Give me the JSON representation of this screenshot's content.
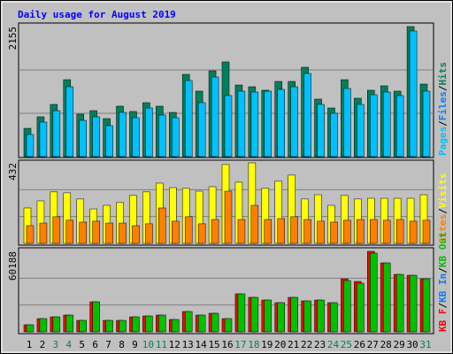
{
  "chart_data": [
    {
      "type": "bar",
      "title": "Daily usage for August 2019",
      "ylim": [
        0,
        2155
      ],
      "yticks": [
        2155
      ],
      "legend_separator": "/",
      "extra_legend": {
        "name": "Pages",
        "color": "#00c0ff"
      },
      "series": [
        {
          "name": "Hits",
          "color": "#00805c",
          "values": [
            469,
            660,
            865,
            1275,
            704,
            762,
            630,
            836,
            748,
            894,
            836,
            733,
            1363,
            1085,
            1422,
            1569,
            1187,
            1158,
            1100,
            1246,
            1246,
            1481,
            953,
            806,
            1275,
            968,
            1100,
            1173,
            1085,
            2155,
            1202
          ]
        },
        {
          "name": "Files",
          "color": "#0080ff",
          "bar_color": "#00c0ff",
          "values": [
            367,
            572,
            762,
            1158,
            601,
            660,
            513,
            733,
            645,
            806,
            689,
            645,
            1261,
            894,
            1319,
            1012,
            1085,
            1070,
            1085,
            1114,
            1158,
            1378,
            865,
            718,
            1129,
            865,
            1026,
            1070,
            1012,
            2082,
            1085
          ]
        }
      ]
    },
    {
      "type": "bar",
      "ylim": [
        0,
        432
      ],
      "yticks": [
        432
      ],
      "series": [
        {
          "name": "Visits",
          "color": "#ffff00",
          "values": [
            190,
            228,
            276,
            271,
            238,
            185,
            204,
            219,
            257,
            276,
            323,
            299,
            295,
            280,
            304,
            423,
            328,
            432,
            295,
            333,
            366,
            238,
            261,
            204,
            257,
            238,
            242,
            242,
            242,
            242,
            261
          ]
        },
        {
          "name": "Sites",
          "color": "#ff8000",
          "values": [
            95,
            109,
            143,
            124,
            114,
            119,
            109,
            109,
            95,
            105,
            190,
            119,
            143,
            105,
            128,
            280,
            128,
            204,
            128,
            133,
            143,
            128,
            119,
            114,
            124,
            128,
            128,
            124,
            128,
            119,
            124
          ]
        }
      ]
    },
    {
      "type": "bar",
      "ylim": [
        0,
        60188
      ],
      "yticks": [
        60188
      ],
      "extra_legend": {
        "name": "KB In",
        "color": "#0080ff"
      },
      "categories": [
        "1",
        "2",
        "3",
        "4",
        "5",
        "6",
        "7",
        "8",
        "9",
        "10",
        "11",
        "12",
        "13",
        "14",
        "15",
        "16",
        "17",
        "18",
        "19",
        "20",
        "21",
        "22",
        "23",
        "24",
        "25",
        "26",
        "27",
        "28",
        "29",
        "30",
        "31"
      ],
      "category_colors": [
        "#000000",
        "#000000",
        "#00805c",
        "#00805c",
        "#000000",
        "#000000",
        "#000000",
        "#000000",
        "#000000",
        "#00805c",
        "#00805c",
        "#000000",
        "#000000",
        "#000000",
        "#000000",
        "#000000",
        "#00805c",
        "#00805c",
        "#000000",
        "#000000",
        "#000000",
        "#000000",
        "#000000",
        "#00805c",
        "#00805c",
        "#000000",
        "#000000",
        "#000000",
        "#000000",
        "#000000",
        "#00805c"
      ],
      "series": [
        {
          "name": "KB F",
          "color": "#ff0000",
          "values": [
            5288,
            9915,
            11237,
            12559,
            8593,
            22474,
            8593,
            8593,
            11237,
            11898,
            12559,
            9254,
            15203,
            12559,
            13881,
            9915,
            28423,
            25779,
            23796,
            21813,
            25779,
            23135,
            23796,
            21813,
            39660,
            37677,
            60188,
            51558,
            42965,
            42304,
            39660
          ]
        },
        {
          "name": "KB Out",
          "color": "#00c000",
          "values": [
            5288,
            9915,
            11237,
            12559,
            8593,
            22474,
            8593,
            8593,
            11237,
            11898,
            12559,
            9254,
            15203,
            12559,
            13881,
            9915,
            28423,
            25779,
            23796,
            21813,
            25779,
            23135,
            23796,
            21813,
            38338,
            36355,
            58866,
            51558,
            42965,
            42304,
            39660
          ]
        }
      ]
    }
  ]
}
